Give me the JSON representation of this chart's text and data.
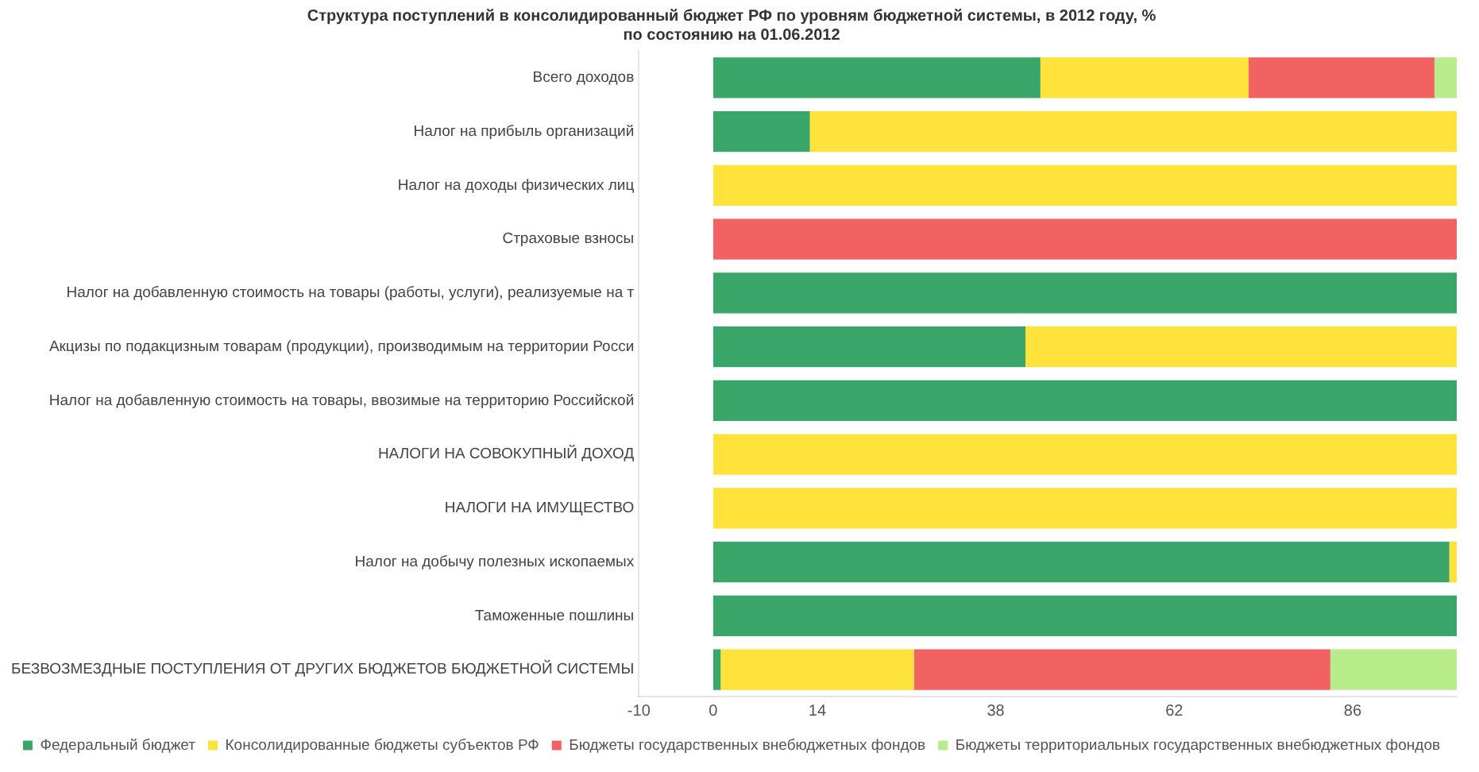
{
  "chart_data": {
    "type": "bar",
    "orientation": "horizontal",
    "stacked": true,
    "title": "Структура поступлений в консолидированный бюджет РФ по уровням бюджетной системы, в 2012 году, %",
    "subtitle": "по состоянию на 01.06.2012",
    "categories": [
      "Всего доходов",
      "Налог на прибыль организаций",
      "Налог на доходы физических лиц",
      "Страховые взносы",
      "Налог на добавленную стоимость на товары (работы, услуги), реализуемые на т",
      "Акцизы по подакцизным товарам (продукции), производимым на территории Росси",
      "Налог на добавленную стоимость на товары, ввозимые на территорию Российской",
      "НАЛОГИ НА СОВОКУПНЫЙ ДОХОД",
      "НАЛОГИ НА ИМУЩЕСТВО",
      "Налог на добычу полезных ископаемых",
      "Таможенные пошлины",
      "БЕЗВОЗМЕЗДНЫЕ ПОСТУПЛЕНИЯ ОТ ДРУГИХ БЮДЖЕТОВ БЮДЖЕТНОЙ СИСТЕМЫ"
    ],
    "series": [
      {
        "name": "Федеральный бюджет",
        "color": "#3aa66a",
        "values": [
          44,
          13,
          0,
          0,
          100,
          42,
          100,
          0,
          0,
          99,
          100,
          1
        ]
      },
      {
        "name": "Консолидированные бюджеты субъектов РФ",
        "color": "#ffe23a",
        "values": [
          28,
          87,
          100,
          0,
          0,
          58,
          0,
          100,
          100,
          1,
          0,
          26
        ]
      },
      {
        "name": "Бюджеты государственных внебюджетных фондов",
        "color": "#f26262",
        "values": [
          25,
          0,
          0,
          100,
          0,
          0,
          0,
          0,
          0,
          0,
          0,
          56
        ]
      },
      {
        "name": "Бюджеты территориальных государственных внебюджетных фондов",
        "color": "#b8ec8a",
        "values": [
          3,
          0,
          0,
          0,
          0,
          0,
          0,
          0,
          0,
          0,
          0,
          17
        ]
      }
    ],
    "xlim": [
      -10,
      100
    ],
    "xticks": [
      -10,
      0,
      14,
      38,
      62,
      86
    ],
    "grid": false,
    "legend": "bottom"
  }
}
